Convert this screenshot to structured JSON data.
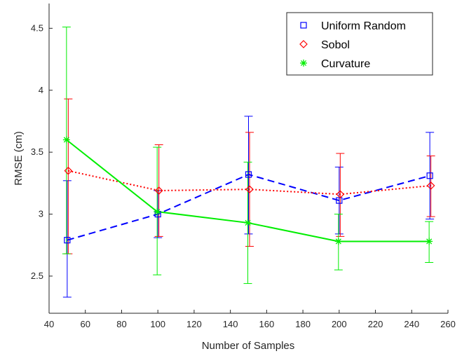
{
  "chart_data": {
    "type": "line",
    "title": "",
    "xlabel": "Number of Samples",
    "ylabel": "RMSE (cm)",
    "xlim": [
      40,
      260
    ],
    "ylim": [
      2.2,
      4.7
    ],
    "xticks": [
      40,
      60,
      80,
      100,
      120,
      140,
      160,
      180,
      200,
      220,
      240,
      260
    ],
    "yticks": [
      2.5,
      3,
      3.5,
      4,
      4.5
    ],
    "xtick_labels": [
      "40",
      "60",
      "80",
      "100",
      "120",
      "140",
      "160",
      "180",
      "200",
      "220",
      "240",
      "260"
    ],
    "ytick_labels": [
      "2.5",
      "3",
      "3.5",
      "4",
      "4.5"
    ],
    "grid": false,
    "legend_position": "top-right",
    "x": [
      50,
      100,
      150,
      200,
      250
    ],
    "series": [
      {
        "name": "Uniform Random",
        "x": [
          50,
          100,
          150,
          200,
          250
        ],
        "values": [
          2.79,
          3.0,
          3.32,
          3.11,
          3.31
        ],
        "lower": [
          2.33,
          2.81,
          2.84,
          2.84,
          2.96
        ],
        "upper": [
          3.27,
          3.19,
          3.79,
          3.38,
          3.66
        ],
        "color": "#0000ff",
        "line_style": "dashed",
        "marker": "square"
      },
      {
        "name": "Sobol",
        "x": [
          50,
          100,
          150,
          200,
          250
        ],
        "values": [
          3.35,
          3.19,
          3.2,
          3.16,
          3.23
        ],
        "lower": [
          2.68,
          2.82,
          2.74,
          2.82,
          2.98
        ],
        "upper": [
          3.93,
          3.56,
          3.66,
          3.49,
          3.47
        ],
        "color": "#ff0000",
        "line_style": "dotted",
        "marker": "diamond"
      },
      {
        "name": "Curvature",
        "x": [
          50,
          100,
          150,
          200,
          250
        ],
        "values": [
          3.6,
          3.02,
          2.93,
          2.78,
          2.78
        ],
        "lower": [
          2.68,
          2.51,
          2.44,
          2.55,
          2.61
        ],
        "upper": [
          4.51,
          3.54,
          3.42,
          3.0,
          2.94
        ],
        "color": "#00ee00",
        "line_style": "solid",
        "marker": "asterisk"
      }
    ]
  }
}
